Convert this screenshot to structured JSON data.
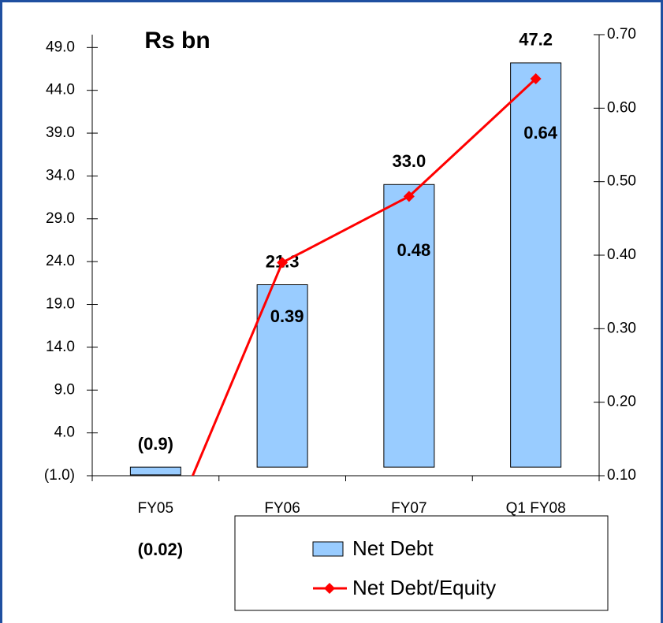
{
  "chart_data": {
    "type": "bar",
    "title": "Rs bn",
    "categories": [
      "FY05",
      "FY06",
      "FY07",
      "Q1 FY08"
    ],
    "series": [
      {
        "name": "Net Debt",
        "type": "bar",
        "color": "#99ccff",
        "values": [
          -0.9,
          21.3,
          33.0,
          47.2
        ],
        "value_labels": [
          "(0.9)",
          "21.3",
          "33.0",
          "47.2"
        ]
      },
      {
        "name": "Net Debt/Equity",
        "type": "line",
        "axis": "y2",
        "color": "#ff0000",
        "values": [
          -0.02,
          0.39,
          0.48,
          0.64
        ],
        "value_labels": [
          "(0.02)",
          "0.39",
          "0.48",
          "0.64"
        ]
      }
    ],
    "ylim": [
      -1,
      50.5
    ],
    "yticks": [
      {
        "value": -1,
        "label": "(1.0)"
      },
      {
        "value": 4,
        "label": "4.0"
      },
      {
        "value": 9,
        "label": "9.0"
      },
      {
        "value": 14,
        "label": "14.0"
      },
      {
        "value": 19,
        "label": "19.0"
      },
      {
        "value": 24,
        "label": "24.0"
      },
      {
        "value": 29,
        "label": "29.0"
      },
      {
        "value": 34,
        "label": "34.0"
      },
      {
        "value": 39,
        "label": "39.0"
      },
      {
        "value": 44,
        "label": "44.0"
      },
      {
        "value": 49,
        "label": "49.0"
      }
    ],
    "y2lim": [
      0.1,
      0.7
    ],
    "y2ticks": [
      {
        "value": 0.1,
        "label": "0.10"
      },
      {
        "value": 0.2,
        "label": "0.20"
      },
      {
        "value": 0.3,
        "label": "0.30"
      },
      {
        "value": 0.4,
        "label": "0.40"
      },
      {
        "value": 0.5,
        "label": "0.50"
      },
      {
        "value": 0.6,
        "label": "0.60"
      },
      {
        "value": 0.7,
        "label": "0.70"
      }
    ],
    "legend": "bottom"
  }
}
